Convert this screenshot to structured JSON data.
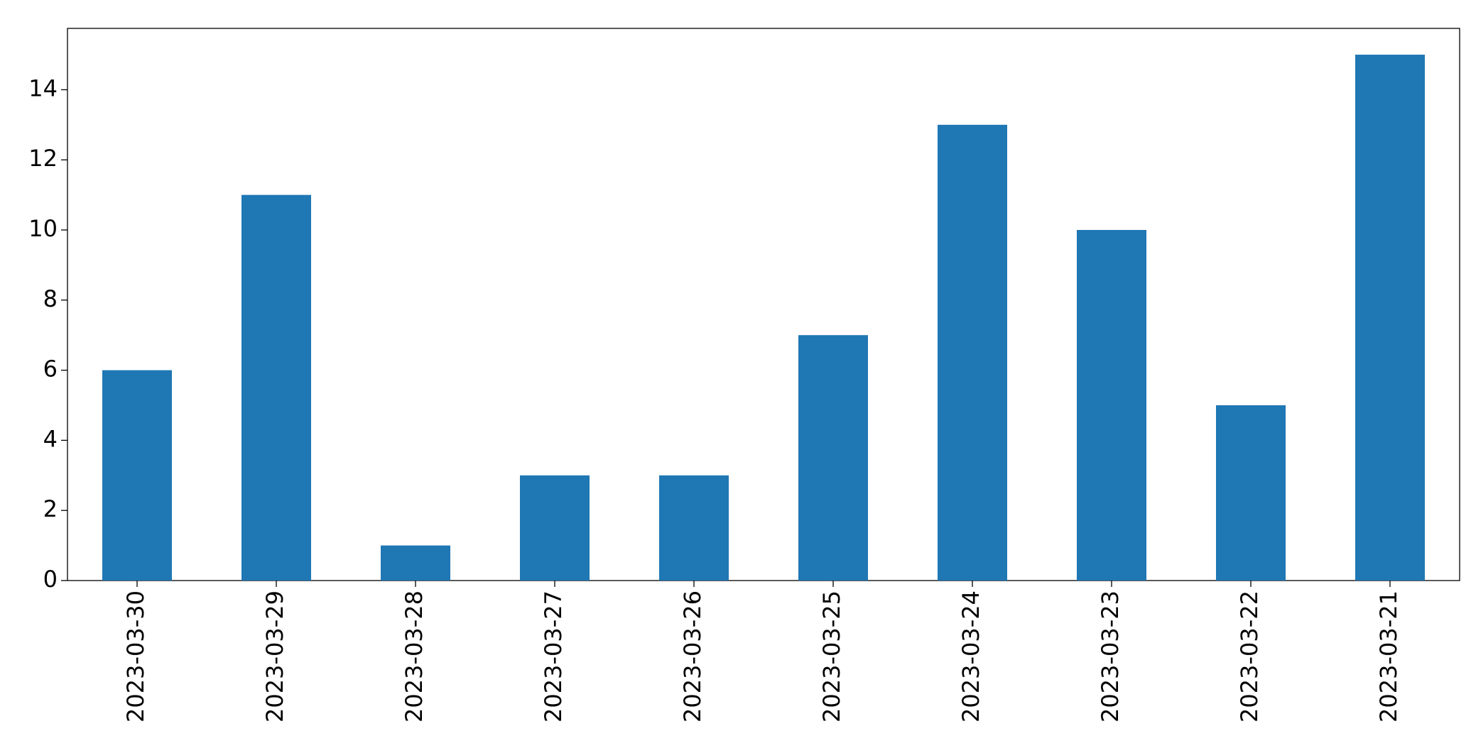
{
  "chart_data": {
    "type": "bar",
    "categories": [
      "2023-03-30",
      "2023-03-29",
      "2023-03-28",
      "2023-03-27",
      "2023-03-26",
      "2023-03-25",
      "2023-03-24",
      "2023-03-23",
      "2023-03-22",
      "2023-03-21"
    ],
    "values": [
      6,
      11,
      1,
      3,
      3,
      7,
      13,
      10,
      5,
      15
    ],
    "color": "#1f77b4",
    "ylim": [
      0,
      15.75
    ],
    "yticks": [
      0,
      2,
      4,
      6,
      8,
      10,
      12,
      14
    ],
    "grid": false
  }
}
